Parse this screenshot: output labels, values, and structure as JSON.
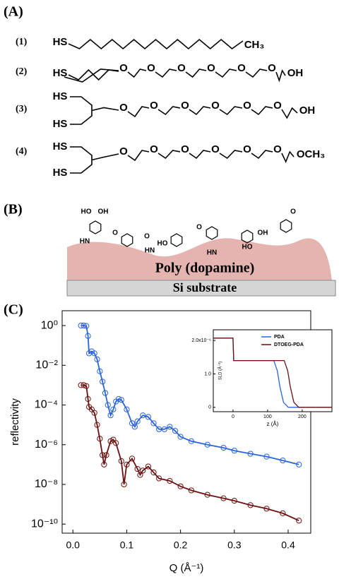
{
  "panels": [
    "(A)",
    "(B)",
    "(C)"
  ],
  "structures": [
    {
      "label": "(1)",
      "groups": [
        "HS",
        "CH₃"
      ]
    },
    {
      "label": "(2)",
      "groups": [
        "HS",
        "O",
        "O",
        "O",
        "O",
        "O",
        "O",
        "OH"
      ]
    },
    {
      "label": "(3)",
      "groups": [
        "HS",
        "HS",
        "O",
        "O",
        "O",
        "O",
        "O",
        "O",
        "OH"
      ]
    },
    {
      "label": "(4)",
      "groups": [
        "HS",
        "HS",
        "O",
        "O",
        "O",
        "O",
        "O",
        "O",
        "OCH₃"
      ]
    }
  ],
  "surface": {
    "labels": [
      "HO",
      "OH",
      "HN",
      "O",
      "O",
      "HN",
      "HO",
      "O",
      "HN",
      "HO",
      "OH",
      "O"
    ],
    "coating": "Poly (dopamine)",
    "substrate": "Si substrate"
  },
  "chart_data": [
    {
      "type": "line",
      "markers": true,
      "ylabel": "reflectivity",
      "xlabel": "Q (Å⁻¹)",
      "ylog": true,
      "xlim": [
        -0.02,
        0.442
      ],
      "ylim": [
        3.5e-11,
        5.6
      ],
      "xticks": [
        {
          "value": 0,
          "label": "0.0"
        },
        0.1,
        0.2,
        0.3,
        0.4
      ],
      "yticks": [
        {
          "value": 1,
          "label": "10⁰"
        },
        {
          "value": 0.01,
          "label": "10⁻²"
        },
        {
          "value": 0.0001,
          "label": "10⁻⁴"
        },
        {
          "value": 1e-06,
          "label": "10⁻⁶"
        },
        {
          "value": 1e-08,
          "label": "10⁻⁸"
        },
        {
          "value": 1e-10,
          "label": "10⁻¹⁰"
        }
      ],
      "series": [
        {
          "color": "#2a64d8",
          "x": [
            0.015,
            0.02,
            0.025,
            0.028,
            0.03,
            0.035,
            0.04,
            0.045,
            0.05,
            0.055,
            0.06,
            0.065,
            0.07,
            0.075,
            0.08,
            0.085,
            0.09,
            0.1,
            0.11,
            0.115,
            0.12,
            0.13,
            0.14,
            0.15,
            0.16,
            0.17,
            0.18,
            0.19,
            0.2,
            0.22,
            0.25,
            0.28,
            0.3,
            0.33,
            0.36,
            0.39,
            0.42
          ],
          "values": [
            1,
            1,
            0.95,
            0.3,
            0.04,
            0.05,
            0.04,
            0.02,
            0.005,
            0.0015,
            0.0004,
            0.0001,
            3e-05,
            6e-05,
            0.00015,
            0.0002,
            0.00018,
            6e-05,
            1.2e-05,
            8e-06,
            1.5e-05,
            3e-05,
            2.5e-05,
            1.2e-05,
            6e-06,
            6e-06,
            8e-06,
            5e-06,
            2.5e-06,
            1.5e-06,
            1e-06,
            7e-07,
            5e-07,
            3.5e-07,
            2.5e-07,
            1.6e-07,
            1e-07
          ]
        },
        {
          "color": "#6b1010",
          "x": [
            0.015,
            0.02,
            0.025,
            0.028,
            0.03,
            0.035,
            0.04,
            0.045,
            0.05,
            0.055,
            0.058,
            0.062,
            0.07,
            0.075,
            0.08,
            0.09,
            0.095,
            0.1,
            0.11,
            0.12,
            0.125,
            0.13,
            0.14,
            0.15,
            0.16,
            0.18,
            0.2,
            0.22,
            0.25,
            0.28,
            0.3,
            0.33,
            0.36,
            0.39,
            0.42
          ],
          "values": [
            0.001,
            0.001,
            0.0009,
            0.0002,
            8e-05,
            6e-05,
            4e-05,
            1e-05,
            2e-06,
            3e-07,
            1e-07,
            3e-07,
            1.5e-06,
            1.8e-06,
            1.2e-06,
            1.5e-07,
            1e-08,
            1e-07,
            2e-07,
            6e-08,
            3e-08,
            5e-08,
            8e-08,
            4e-08,
            2e-08,
            1.5e-08,
            8e-09,
            5e-09,
            3e-09,
            2e-09,
            1.5e-09,
            9e-10,
            6e-10,
            3.5e-10,
            1.5e-10
          ]
        }
      ]
    },
    {
      "type": "line",
      "markers": false,
      "ylabel": "SLD (Å⁻²)",
      "xlabel": "z (Å)",
      "legend": "upper right",
      "xlim": [
        -57,
        286
      ],
      "ylim": [
        -1.3e-07,
        2.32e-06
      ],
      "xticks": [
        0,
        100,
        200
      ],
      "yticks": [
        0,
        {
          "value": 1e-06,
          "label": "1.0"
        },
        {
          "value": 2e-06,
          "label": "2.0x10⁻⁶"
        }
      ],
      "series": [
        {
          "name": "PDA",
          "color": "#2a64d8",
          "x": [
            -57,
            0,
            2,
            118,
            128,
            136,
            146,
            160,
            286
          ],
          "values": [
            2.07e-06,
            2.07e-06,
            1.4e-06,
            1.4e-06,
            1.1e-06,
            6e-07,
            1.5e-07,
            0,
            0
          ]
        },
        {
          "name": "DTOEG-PDA",
          "color": "#6b1010",
          "x": [
            -57,
            0,
            2,
            148,
            158,
            166,
            176,
            190,
            286
          ],
          "values": [
            2.07e-06,
            2.07e-06,
            1.4e-06,
            1.4e-06,
            1.1e-06,
            6e-07,
            1.5e-07,
            0,
            0
          ]
        }
      ]
    }
  ]
}
